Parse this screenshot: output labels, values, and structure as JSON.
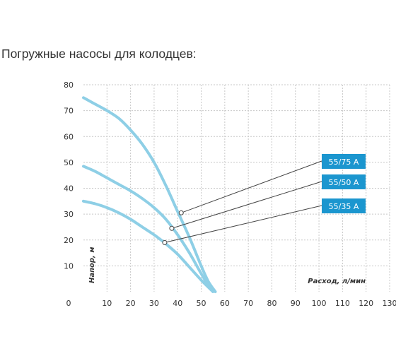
{
  "title": "Погружные насосы для колодцев:",
  "chart_data": {
    "type": "line",
    "xlabel": "Расход, л/мин",
    "ylabel": "Напор, м",
    "xlim": [
      0,
      130
    ],
    "ylim": [
      0,
      80
    ],
    "x_ticks": [
      0,
      10,
      20,
      30,
      40,
      50,
      60,
      70,
      80,
      90,
      100,
      110,
      120,
      130
    ],
    "y_ticks": [
      10,
      20,
      30,
      40,
      50,
      60,
      70,
      80
    ],
    "grid": true,
    "line_color": "#8ecfe6",
    "badge_color": "#1b96cf",
    "series": [
      {
        "name": "55/75 A",
        "points": [
          [
            0,
            75
          ],
          [
            5,
            72.5
          ],
          [
            10,
            70
          ],
          [
            15,
            67
          ],
          [
            20,
            62.5
          ],
          [
            25,
            57
          ],
          [
            30,
            50
          ],
          [
            35,
            41
          ],
          [
            40,
            31
          ],
          [
            45,
            21
          ],
          [
            50,
            10
          ],
          [
            53,
            4
          ],
          [
            56,
            0
          ]
        ]
      },
      {
        "name": "55/50 A",
        "points": [
          [
            0,
            48.5
          ],
          [
            5,
            46.5
          ],
          [
            10,
            44
          ],
          [
            15,
            41.5
          ],
          [
            20,
            39
          ],
          [
            25,
            36
          ],
          [
            30,
            32.5
          ],
          [
            35,
            28
          ],
          [
            40,
            22
          ],
          [
            45,
            15
          ],
          [
            50,
            7
          ],
          [
            54,
            1
          ]
        ]
      },
      {
        "name": "55/35 A",
        "points": [
          [
            0,
            35
          ],
          [
            5,
            34
          ],
          [
            10,
            32.5
          ],
          [
            15,
            30.5
          ],
          [
            20,
            28
          ],
          [
            25,
            25
          ],
          [
            30,
            22
          ],
          [
            35,
            18.5
          ],
          [
            40,
            14.5
          ],
          [
            45,
            9.5
          ],
          [
            50,
            4.5
          ],
          [
            55,
            0
          ]
        ]
      }
    ],
    "callouts": [
      {
        "series": "55/75 A",
        "point": [
          41.5,
          30.5
        ]
      },
      {
        "series": "55/50 A",
        "point": [
          37.5,
          24.5
        ]
      },
      {
        "series": "55/35 A",
        "point": [
          34.5,
          19
        ]
      }
    ]
  }
}
